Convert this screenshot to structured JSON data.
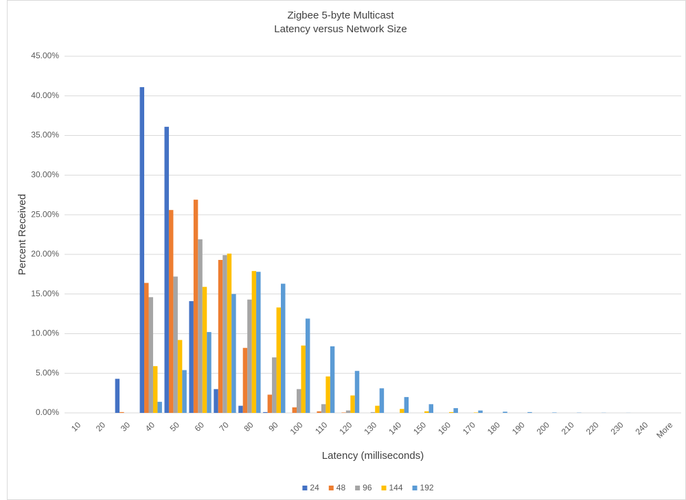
{
  "chart_data": {
    "type": "bar",
    "title": "Zigbee 5-byte Multicast",
    "subtitle": "Latency versus Network Size",
    "x_label": "Latency (milliseconds)",
    "y_label": "Percent Received",
    "categories": [
      "10",
      "20",
      "30",
      "40",
      "50",
      "60",
      "70",
      "80",
      "90",
      "100",
      "110",
      "120",
      "130",
      "140",
      "150",
      "160",
      "170",
      "180",
      "190",
      "200",
      "210",
      "220",
      "230",
      "240",
      "More"
    ],
    "series": [
      {
        "name": "24",
        "color": "#4472c4",
        "values": [
          0,
          0,
          4.3,
          41.1,
          36.1,
          14.1,
          3.0,
          0.9,
          0.1,
          0,
          0,
          0,
          0,
          0,
          0,
          0,
          0,
          0,
          0,
          0,
          0,
          0,
          0,
          0,
          0
        ]
      },
      {
        "name": "48",
        "color": "#ed7d31",
        "values": [
          0,
          0,
          0.1,
          16.4,
          25.6,
          26.9,
          19.3,
          8.2,
          2.3,
          0.7,
          0.2,
          0.05,
          0,
          0,
          0,
          0,
          0,
          0,
          0,
          0,
          0,
          0,
          0,
          0,
          0
        ]
      },
      {
        "name": "96",
        "color": "#a5a5a5",
        "values": [
          0,
          0,
          0,
          14.6,
          17.2,
          21.9,
          19.9,
          14.3,
          7.0,
          3.0,
          1.1,
          0.3,
          0.1,
          0,
          0,
          0,
          0,
          0,
          0,
          0,
          0,
          0,
          0,
          0,
          0
        ]
      },
      {
        "name": "144",
        "color": "#ffc000",
        "values": [
          0,
          0,
          0,
          5.9,
          9.2,
          15.9,
          20.1,
          17.9,
          13.3,
          8.5,
          4.6,
          2.2,
          0.9,
          0.5,
          0.2,
          0.1,
          0.05,
          0,
          0,
          0,
          0,
          0,
          0,
          0,
          0
        ]
      },
      {
        "name": "192",
        "color": "#5b9bd5",
        "values": [
          0,
          0,
          0,
          1.4,
          5.4,
          10.2,
          15.0,
          17.8,
          16.3,
          11.9,
          8.4,
          5.3,
          3.1,
          2.0,
          1.1,
          0.6,
          0.3,
          0.15,
          0.1,
          0.05,
          0.03,
          0.02,
          0.01,
          0,
          0
        ]
      }
    ],
    "ylim": [
      0,
      45
    ],
    "yticks": [
      {
        "value": 0,
        "label": "0.00%"
      },
      {
        "value": 5,
        "label": "5.00%"
      },
      {
        "value": 10,
        "label": "10.00%"
      },
      {
        "value": 15,
        "label": "15.00%"
      },
      {
        "value": 20,
        "label": "20.00%"
      },
      {
        "value": 25,
        "label": "25.00%"
      },
      {
        "value": 30,
        "label": "30.00%"
      },
      {
        "value": 35,
        "label": "35.00%"
      },
      {
        "value": 40,
        "label": "40.00%"
      },
      {
        "value": 45,
        "label": "45.00%"
      }
    ],
    "grid": true,
    "legend": "bottom"
  }
}
